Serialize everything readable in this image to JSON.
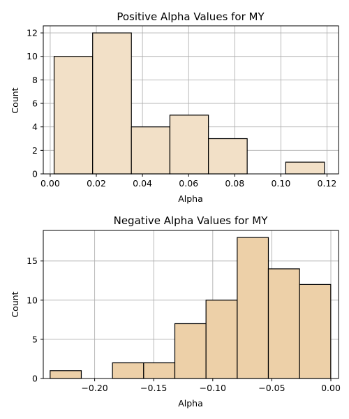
{
  "chart_data": [
    {
      "type": "bar",
      "title": "Positive Alpha Values for MY",
      "xlabel": "Alpha",
      "ylabel": "Count",
      "xlim": [
        -0.003,
        0.125
      ],
      "ylim": [
        0,
        12.6
      ],
      "xticks": [
        0.0,
        0.02,
        0.04,
        0.06,
        0.08,
        0.1,
        0.12
      ],
      "xtick_labels": [
        "0.00",
        "0.02",
        "0.04",
        "0.06",
        "0.08",
        "0.10",
        "0.12"
      ],
      "yticks": [
        0,
        2,
        4,
        6,
        8,
        10,
        12
      ],
      "ytick_labels": [
        "0",
        "2",
        "4",
        "6",
        "8",
        "10",
        "12"
      ],
      "grid": true,
      "bar_color": "#f2e0c7",
      "bins": [
        {
          "x0": 0.0017,
          "x1": 0.0184,
          "count": 10
        },
        {
          "x0": 0.0184,
          "x1": 0.0352,
          "count": 12
        },
        {
          "x0": 0.0352,
          "x1": 0.0519,
          "count": 4
        },
        {
          "x0": 0.0519,
          "x1": 0.0686,
          "count": 5
        },
        {
          "x0": 0.0686,
          "x1": 0.0854,
          "count": 3
        },
        {
          "x0": 0.0854,
          "x1": 0.1021,
          "count": 0
        },
        {
          "x0": 0.1021,
          "x1": 0.1189,
          "count": 1
        }
      ]
    },
    {
      "type": "bar",
      "title": "Negative Alpha Values for MY",
      "xlabel": "Alpha",
      "ylabel": "Count",
      "xlim": [
        -0.2435,
        0.0065
      ],
      "ylim": [
        0,
        18.9
      ],
      "xticks": [
        -0.2,
        -0.15,
        -0.1,
        -0.05,
        0.0
      ],
      "xtick_labels": [
        "−0.20",
        "−0.15",
        "−0.10",
        "−0.05",
        "0.00"
      ],
      "yticks": [
        0,
        5,
        10,
        15
      ],
      "ytick_labels": [
        "0",
        "5",
        "10",
        "15"
      ],
      "grid": true,
      "bar_color": "#edd0a8",
      "bins": [
        {
          "x0": -0.2377,
          "x1": -0.2113,
          "count": 1
        },
        {
          "x0": -0.2113,
          "x1": -0.1849,
          "count": 0
        },
        {
          "x0": -0.1849,
          "x1": -0.1585,
          "count": 2
        },
        {
          "x0": -0.1585,
          "x1": -0.1321,
          "count": 2
        },
        {
          "x0": -0.1321,
          "x1": -0.1057,
          "count": 7
        },
        {
          "x0": -0.1057,
          "x1": -0.0793,
          "count": 10
        },
        {
          "x0": -0.0793,
          "x1": -0.0529,
          "count": 18
        },
        {
          "x0": -0.0529,
          "x1": -0.0265,
          "count": 14
        },
        {
          "x0": -0.0265,
          "x1": -0.0001,
          "count": 12
        }
      ]
    }
  ]
}
